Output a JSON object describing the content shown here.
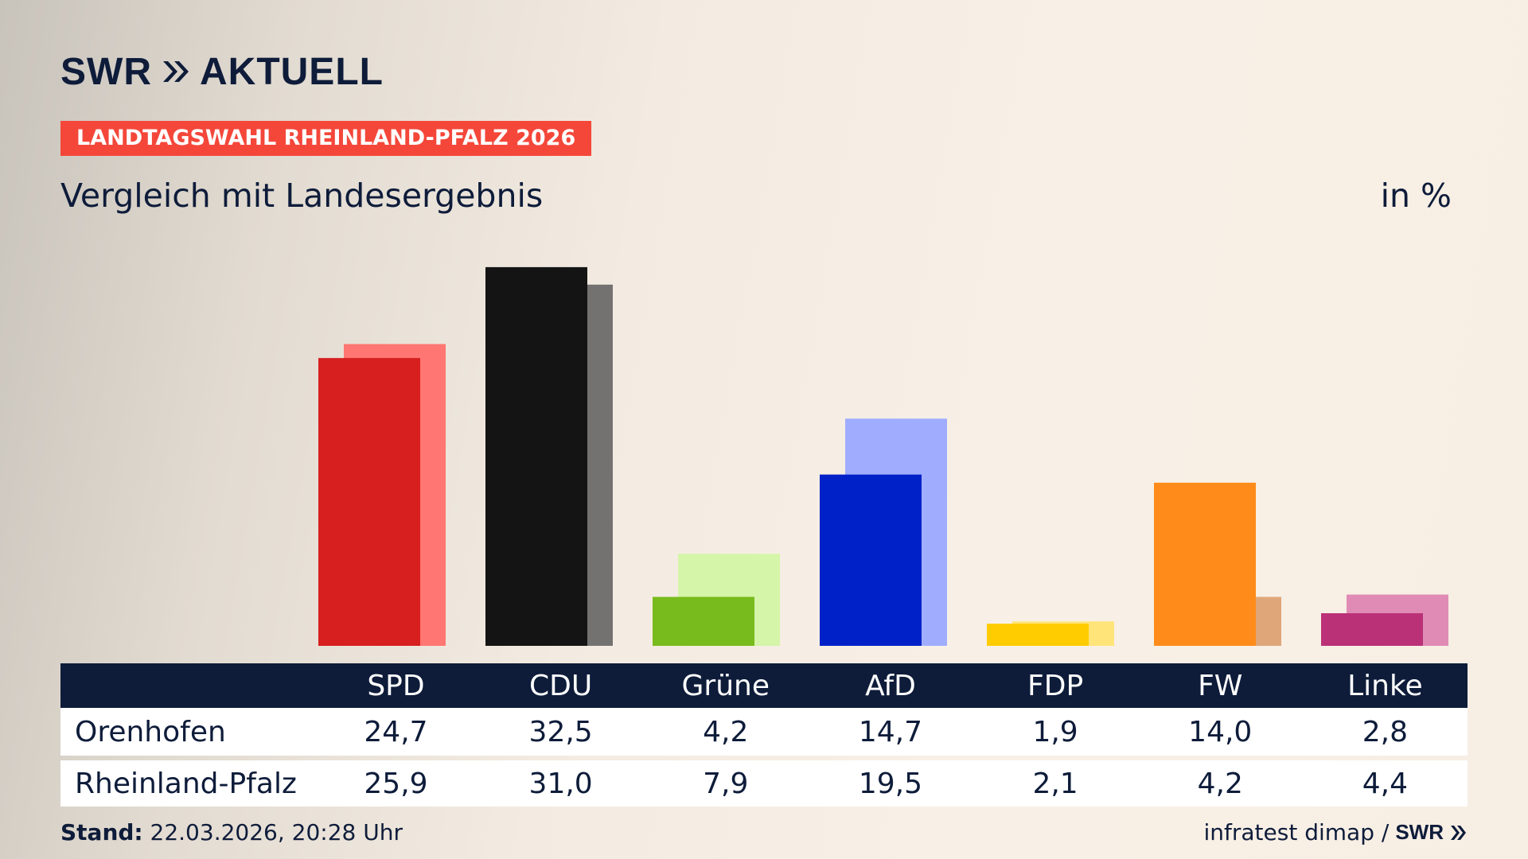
{
  "header": {
    "brand": "SWR",
    "brand_suffix": "AKTUELL",
    "badge": "LANDTAGSWAHL RHEINLAND-PFALZ 2026",
    "subtitle": "Vergleich mit Landesergebnis",
    "unit": "in %"
  },
  "table": {
    "columns": [
      "SPD",
      "CDU",
      "Grüne",
      "AfD",
      "FDP",
      "FW",
      "Linke"
    ],
    "rows": [
      {
        "label": "Orenhofen",
        "values": [
          "24,7",
          "32,5",
          "4,2",
          "14,7",
          "1,9",
          "14,0",
          "2,8"
        ]
      },
      {
        "label": "Rheinland-Pfalz",
        "values": [
          "25,9",
          "31,0",
          "7,9",
          "19,5",
          "2,1",
          "4,2",
          "4,4"
        ]
      }
    ]
  },
  "footer": {
    "stand_label": "Stand:",
    "stand_value": "22.03.2026, 20:28 Uhr",
    "source": "infratest dimap /",
    "source_brand": "SWR"
  },
  "chart_data": {
    "type": "bar",
    "title": "Vergleich mit Landesergebnis",
    "ylabel": "in %",
    "categories": [
      "SPD",
      "CDU",
      "Grüne",
      "AfD",
      "FDP",
      "FW",
      "Linke"
    ],
    "series": [
      {
        "name": "Orenhofen",
        "values": [
          24.7,
          32.5,
          4.2,
          14.7,
          1.9,
          14.0,
          2.8
        ]
      },
      {
        "name": "Rheinland-Pfalz",
        "values": [
          25.9,
          31.0,
          7.9,
          19.5,
          2.1,
          4.2,
          4.4
        ]
      }
    ],
    "colors_local": [
      "#d71f20",
      "#141414",
      "#78bb1c",
      "#0021c8",
      "#ffcc00",
      "#ff8c1a",
      "#bb3177"
    ],
    "colors_state": [
      "#ff7672",
      "#747270",
      "#d5f5a9",
      "#a0adff",
      "#ffe47a",
      "#dfa779",
      "#e08bb5"
    ],
    "grid": false,
    "legend": "table-below"
  }
}
